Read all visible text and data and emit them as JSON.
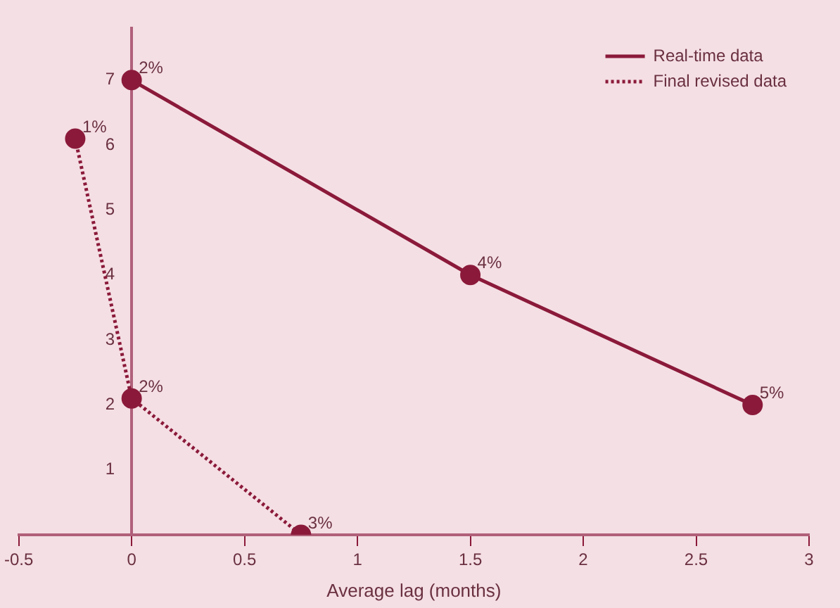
{
  "chart_data": {
    "type": "line",
    "xlabel": "Average lag (months)",
    "xlim": [
      -0.5,
      3
    ],
    "xticks": [
      -0.5,
      0,
      0.5,
      1,
      1.5,
      2,
      2.5,
      3
    ],
    "ylim": [
      0,
      7.8
    ],
    "yticks": [
      1,
      2,
      3,
      4,
      5,
      6,
      7
    ],
    "series": [
      {
        "name": "Real-time data",
        "color": "#8b1a3a",
        "line_style": "solid",
        "x": [
          0,
          1.5,
          2.75
        ],
        "values": [
          7,
          4,
          2
        ]
      },
      {
        "name": "Final revised data",
        "color": "#8b1a3a",
        "line_style": "dotted",
        "x": [
          -0.25,
          0,
          0.75
        ],
        "values": [
          6.1,
          2.1,
          0
        ]
      }
    ],
    "annotations": [
      {
        "text": "2%",
        "x": 0,
        "y": 7
      },
      {
        "text": "4%",
        "x": 1.5,
        "y": 4
      },
      {
        "text": "5%",
        "x": 2.75,
        "y": 2
      },
      {
        "text": "1%",
        "x": -0.25,
        "y": 6.1
      },
      {
        "text": "2%",
        "x": 0,
        "y": 2.1
      },
      {
        "text": "3%",
        "x": 0.75,
        "y": 0
      }
    ],
    "marker": "circle",
    "grid": false,
    "legend": "top right"
  }
}
